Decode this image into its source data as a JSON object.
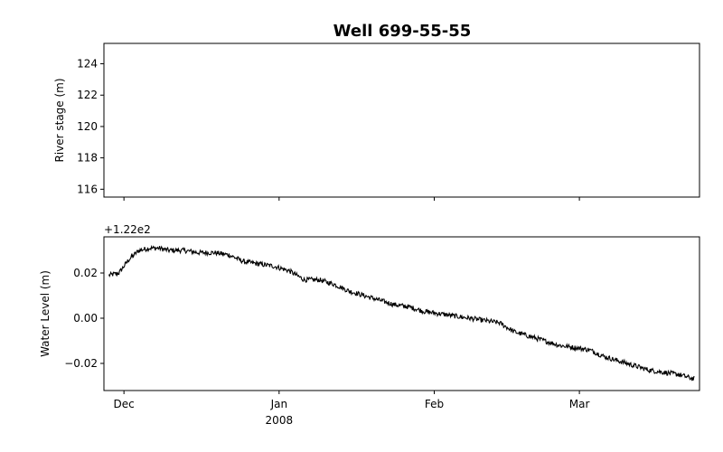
{
  "chart_data": {
    "type": "line",
    "title": "Well 699-55-55",
    "panels": [
      {
        "ylabel": "River stage (m)",
        "ylim": [
          115.5,
          125.3
        ],
        "yticks": [
          116,
          118,
          120,
          122,
          124
        ],
        "ytick_labels": [
          "116",
          "118",
          "120",
          "122",
          "124"
        ],
        "series": [
          {
            "x": [],
            "y": []
          }
        ]
      },
      {
        "ylabel": "Water Level (m)",
        "offset_text": "+1.22e2",
        "ylim": [
          -0.032,
          0.036
        ],
        "yticks": [
          -0.02,
          0.0,
          0.02
        ],
        "ytick_labels": [
          "−0.02",
          "0.00",
          "0.02"
        ],
        "series": [
          {
            "x": [
              "2007-11-28",
              "2007-11-30",
              "2007-12-02",
              "2007-12-04",
              "2007-12-06",
              "2007-12-08",
              "2007-12-10",
              "2007-12-13",
              "2007-12-16",
              "2007-12-19",
              "2007-12-22",
              "2007-12-25",
              "2007-12-28",
              "2007-12-31",
              "2008-01-03",
              "2008-01-06",
              "2008-01-09",
              "2008-01-12",
              "2008-01-15",
              "2008-01-18",
              "2008-01-21",
              "2008-01-24",
              "2008-01-27",
              "2008-01-30",
              "2008-02-02",
              "2008-02-05",
              "2008-02-08",
              "2008-02-11",
              "2008-02-14",
              "2008-02-17",
              "2008-02-20",
              "2008-02-23",
              "2008-02-26",
              "2008-02-29",
              "2008-03-03",
              "2008-03-06",
              "2008-03-09",
              "2008-03-12",
              "2008-03-15",
              "2008-03-18",
              "2008-03-21",
              "2008-03-24"
            ],
            "y": [
              0.019,
              0.02,
              0.026,
              0.03,
              0.031,
              0.031,
              0.03,
              0.03,
              0.029,
              0.029,
              0.028,
              0.025,
              0.024,
              0.023,
              0.021,
              0.017,
              0.017,
              0.015,
              0.012,
              0.01,
              0.008,
              0.006,
              0.005,
              0.003,
              0.002,
              0.001,
              0.0,
              -0.001,
              -0.002,
              -0.006,
              -0.008,
              -0.01,
              -0.012,
              -0.013,
              -0.014,
              -0.017,
              -0.019,
              -0.021,
              -0.023,
              -0.024,
              -0.025,
              -0.027
            ]
          }
        ]
      }
    ],
    "xlim": [
      "2007-11-27",
      "2008-03-25"
    ],
    "xticks": [
      "2007-12-01",
      "2008-01-01",
      "2008-02-01",
      "2008-03-01"
    ],
    "xtick_labels": [
      "Dec",
      "Jan",
      "Feb",
      "Mar"
    ],
    "xtick_sublabel": "2008",
    "line_color": "#000000",
    "grid": false
  }
}
